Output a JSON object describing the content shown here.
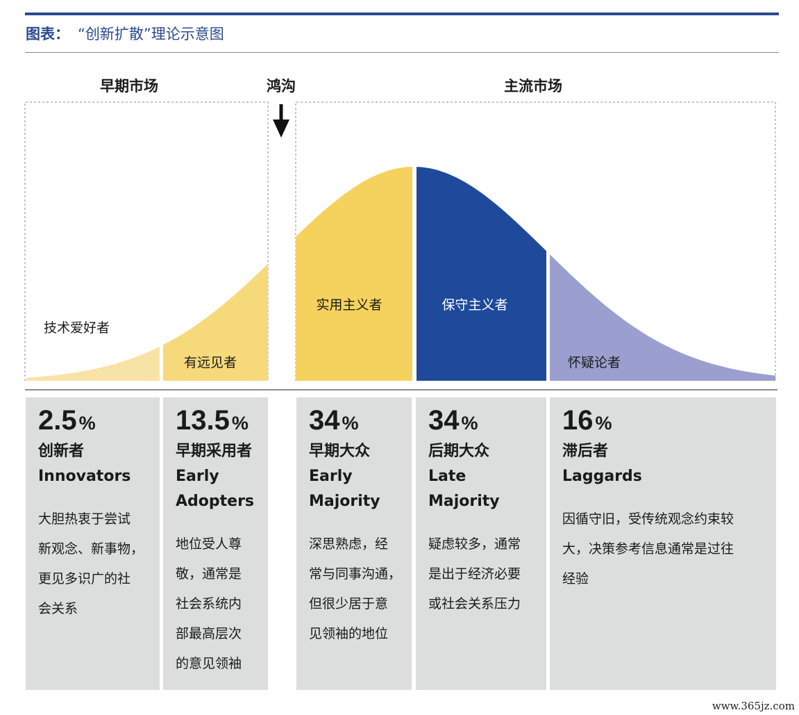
{
  "header": {
    "label": "图表：",
    "title": "“创新扩散”理论示意图"
  },
  "sections": {
    "early_market": "早期市场",
    "chasm": "鸿沟",
    "mainstream_market": "主流市场"
  },
  "chart_data": {
    "type": "area",
    "segments": [
      {
        "curve_label": "技术爱好者",
        "percent": 2.5,
        "percent_text": "2.5",
        "color": "#f7e3a6"
      },
      {
        "curve_label": "有远见者",
        "percent": 13.5,
        "percent_text": "13.5",
        "color": "#f6d97a"
      },
      {
        "curve_label": "实用主义者",
        "percent": 34,
        "percent_text": "34",
        "color": "#f5d25e"
      },
      {
        "curve_label": "保守主义者",
        "percent": 34,
        "percent_text": "34",
        "color": "#1f4a9c"
      },
      {
        "curve_label": "怀疑论者",
        "percent": 16,
        "percent_text": "16",
        "color": "#9a9fcf"
      }
    ]
  },
  "cards": [
    {
      "percent": "2.5",
      "unit": "%",
      "cn": "创新者",
      "en": [
        "Innovators"
      ],
      "desc": [
        "大胆热衷于尝试",
        "新观念、新事物，",
        "更见多识广的社",
        "会关系"
      ]
    },
    {
      "percent": "13.5",
      "unit": "%",
      "cn": "早期采用者",
      "en": [
        "Early",
        "Adopters"
      ],
      "desc": [
        "地位受人尊",
        "敬，通常是",
        "社会系统内",
        "部最高层次",
        "的意见领袖"
      ]
    },
    {
      "percent": "34",
      "unit": "%",
      "cn": "早期大众",
      "en": [
        "Early",
        "Majority"
      ],
      "desc": [
        "深思熟虑，经",
        "常与同事沟通，",
        "但很少居于意",
        "见领袖的地位"
      ]
    },
    {
      "percent": "34",
      "unit": "%",
      "cn": "后期大众",
      "en": [
        "Late",
        "Majority"
      ],
      "desc": [
        "疑虑较多，通常",
        "是出于经济必要",
        "或社会关系压力"
      ]
    },
    {
      "percent": "16",
      "unit": "%",
      "cn": "滞后者",
      "en": [
        "Laggards"
      ],
      "desc": [
        "因循守旧，受传统观念约束较",
        "大，决策参考信息通常是过往",
        "经验"
      ]
    }
  ],
  "footer": {
    "url": "www.365jz.com"
  }
}
